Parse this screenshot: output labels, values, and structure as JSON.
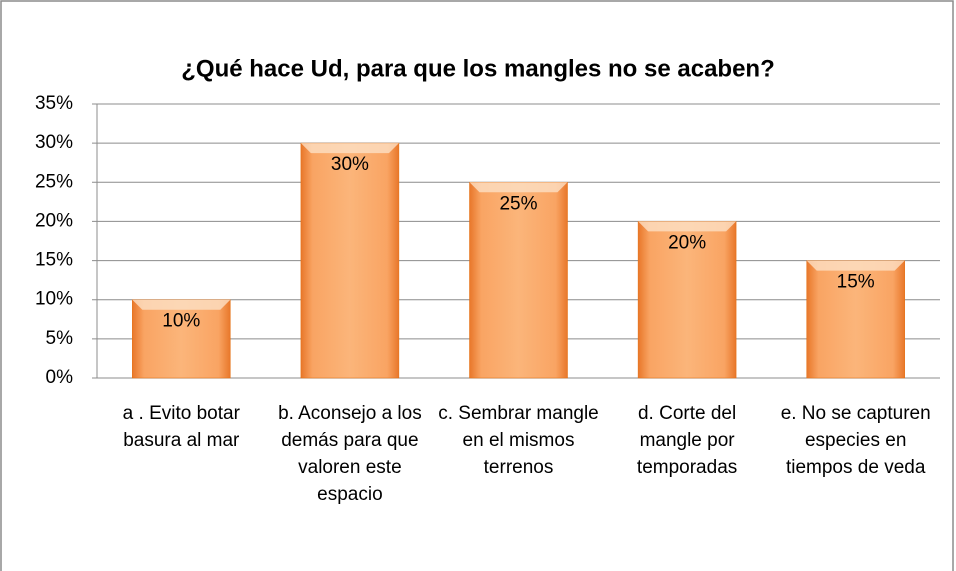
{
  "chart_data": {
    "type": "bar",
    "title": "¿Qué hace Ud, para que los mangles no se acaben?",
    "categories": [
      "a . Evito botar basura al mar",
      "b. Aconsejo a los demás para que valoren este espacio",
      "c. Sembrar mangle en el mismos terrenos",
      "d. Corte del mangle por temporadas",
      "e. No se capturen especies en tiempos de veda"
    ],
    "values": [
      10,
      30,
      25,
      20,
      15
    ],
    "value_labels": [
      "10%",
      "30%",
      "25%",
      "20%",
      "15%"
    ],
    "color": "#f79646",
    "ylim": [
      0,
      35
    ],
    "yticks": [
      {
        "value": 0,
        "label": "0%"
      },
      {
        "value": 5,
        "label": "5%"
      },
      {
        "value": 10,
        "label": "10%"
      },
      {
        "value": 15,
        "label": "15%"
      },
      {
        "value": 20,
        "label": "20%"
      },
      {
        "value": 25,
        "label": "25%"
      },
      {
        "value": 30,
        "label": "30%"
      },
      {
        "value": 35,
        "label": "35%"
      }
    ],
    "grid": true
  }
}
